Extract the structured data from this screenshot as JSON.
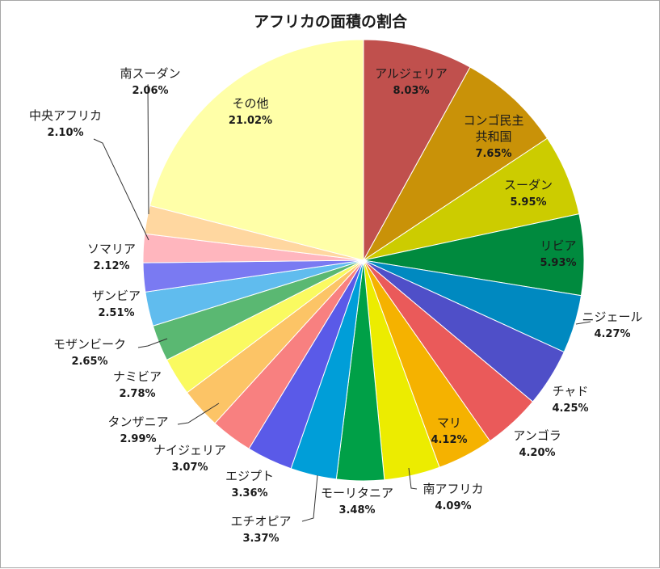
{
  "chart_data": {
    "type": "pie",
    "title": "アフリカの面積の割合",
    "start": "12 o'clock, clockwise",
    "slices": [
      {
        "label": [
          "アルジェリア"
        ],
        "value": 8.03,
        "pct": "8.03%",
        "color": "#c0504d"
      },
      {
        "label": [
          "コンゴ民主",
          "共和国"
        ],
        "value": 7.65,
        "pct": "7.65%",
        "color": "#c99208"
      },
      {
        "label": [
          "スーダン"
        ],
        "value": 5.95,
        "pct": "5.95%",
        "color": "#cccc00"
      },
      {
        "label": [
          "リビア"
        ],
        "value": 5.93,
        "pct": "5.93%",
        "color": "#008a3e"
      },
      {
        "label": [
          "ニジェール"
        ],
        "value": 4.27,
        "pct": "4.27%",
        "color": "#0089c0"
      },
      {
        "label": [
          "チャド"
        ],
        "value": 4.25,
        "pct": "4.25%",
        "color": "#4f4fc8"
      },
      {
        "label": [
          "アンゴラ"
        ],
        "value": 4.2,
        "pct": "4.20%",
        "color": "#ea5a5a"
      },
      {
        "label": [
          "マリ"
        ],
        "value": 4.12,
        "pct": "4.12%",
        "color": "#f5b200"
      },
      {
        "label": [
          "南アフリカ"
        ],
        "value": 4.09,
        "pct": "4.09%",
        "color": "#ecec00"
      },
      {
        "label": [
          "モーリタニア"
        ],
        "value": 3.48,
        "pct": "3.48%",
        "color": "#00a047"
      },
      {
        "label": [
          "エチオピア"
        ],
        "value": 3.37,
        "pct": "3.37%",
        "color": "#009ed8"
      },
      {
        "label": [
          "エジプト"
        ],
        "value": 3.36,
        "pct": "3.36%",
        "color": "#5a5ae8"
      },
      {
        "label": [
          "ナイジェリア"
        ],
        "value": 3.07,
        "pct": "3.07%",
        "color": "#f88080"
      },
      {
        "label": [
          "タンザニア"
        ],
        "value": 2.99,
        "pct": "2.99%",
        "color": "#fcc466"
      },
      {
        "label": [
          "ナミビア"
        ],
        "value": 2.78,
        "pct": "2.78%",
        "color": "#fafa60"
      },
      {
        "label": [
          "モザンビーク"
        ],
        "value": 2.65,
        "pct": "2.65%",
        "color": "#5ab872"
      },
      {
        "label": [
          "ザンビア"
        ],
        "value": 2.51,
        "pct": "2.51%",
        "color": "#60bcee"
      },
      {
        "label": [
          "ソマリア"
        ],
        "value": 2.12,
        "pct": "2.12%",
        "color": "#7a7af2"
      },
      {
        "label": [
          "中央アフリカ"
        ],
        "value": 2.1,
        "pct": "2.10%",
        "color": "#ffb6be"
      },
      {
        "label": [
          "南スーダン"
        ],
        "value": 2.06,
        "pct": "2.06%",
        "color": "#ffd7a0"
      },
      {
        "label": [
          "その他"
        ],
        "value": 21.02,
        "pct": "21.02%",
        "color": "#ffffa8"
      }
    ]
  }
}
